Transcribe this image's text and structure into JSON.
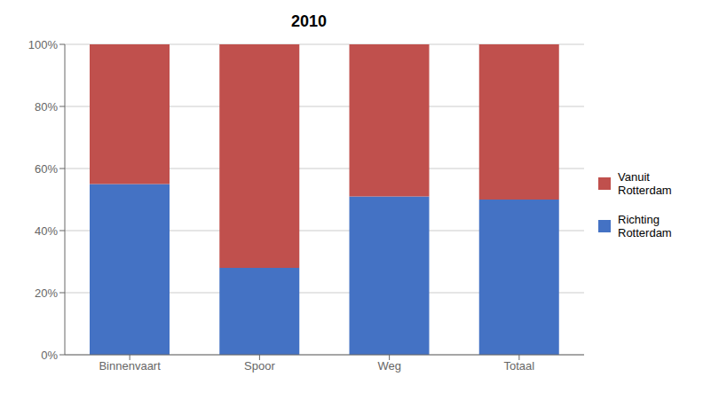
{
  "chart_data": {
    "type": "bar",
    "title": "2010",
    "categories": [
      "Binnenvaart",
      "Spoor",
      "Weg",
      "Totaal"
    ],
    "series": [
      {
        "name": "Richting\nRotterdam",
        "color": "#4472C4",
        "values": [
          0.55,
          0.28,
          0.51,
          0.5
        ]
      },
      {
        "name": "Vanuit\nRotterdam",
        "color": "#C0504D",
        "values": [
          0.45,
          0.72,
          0.49,
          0.5
        ]
      }
    ],
    "stacked": true,
    "ylim": [
      0,
      1.0
    ],
    "yticks": [
      {
        "value": 0,
        "label": "0%"
      },
      {
        "value": 0.2,
        "label": "20%"
      },
      {
        "value": 0.4,
        "label": "40%"
      },
      {
        "value": 0.6,
        "label": "60%"
      },
      {
        "value": 0.8,
        "label": "80%"
      },
      {
        "value": 1.0,
        "label": "100%"
      }
    ],
    "grid": true,
    "legend": "right"
  }
}
